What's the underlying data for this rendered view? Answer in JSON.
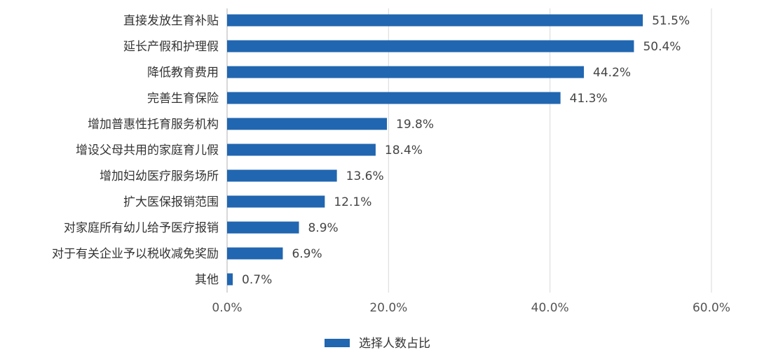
{
  "chart_data": {
    "type": "bar",
    "orientation": "horizontal",
    "categories": [
      "直接发放生育补贴",
      "延长产假和护理假",
      "降低教育费用",
      "完善生育保险",
      "增加普惠性托育服务机构",
      "增设父母共用的家庭育儿假",
      "增加妇幼医疗服务场所",
      "扩大医保报销范围",
      "对家庭所有幼儿给予医疗报销",
      "对于有关企业予以税收减免奖励",
      "其他"
    ],
    "series": [
      {
        "name": "选择人数占比",
        "color": "#2166b0",
        "values": [
          51.5,
          50.4,
          44.2,
          41.3,
          19.8,
          18.4,
          13.6,
          12.1,
          8.9,
          6.9,
          0.7
        ],
        "value_labels": [
          "51.5%",
          "50.4%",
          "44.2%",
          "41.3%",
          "19.8%",
          "18.4%",
          "13.6%",
          "12.1%",
          "8.9%",
          "6.9%",
          "0.7%"
        ]
      }
    ],
    "xlim": [
      0,
      60
    ],
    "xticks": [
      0,
      20,
      40,
      60
    ],
    "xtick_labels": [
      "0.0%",
      "20.0%",
      "40.0%",
      "60.0%"
    ],
    "grid": "vertical",
    "legend": "bottom"
  }
}
